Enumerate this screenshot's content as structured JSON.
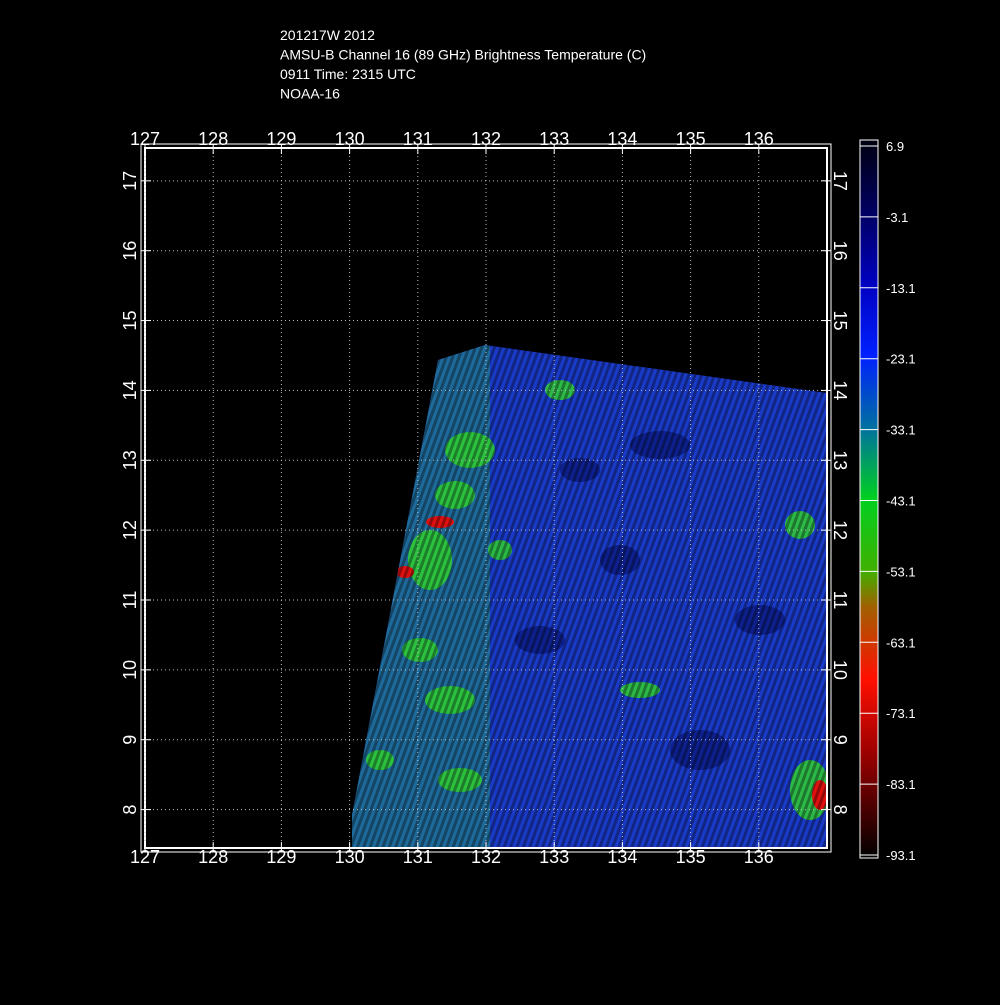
{
  "header": {
    "lines": [
      "201217W 2012",
      "AMSU-B Channel 16 (89 GHz) Brightness Temperature (C)",
      "0911 Time: 2315 UTC",
      "NOAA-16"
    ]
  },
  "map": {
    "lonlim": [
      127,
      137
    ],
    "latlim": [
      7.45,
      17.47
    ],
    "lon_ticks": [
      127,
      128,
      129,
      130,
      131,
      132,
      133,
      134,
      135,
      136
    ],
    "lat_ticks": [
      8,
      9,
      10,
      11,
      12,
      13,
      14,
      15,
      16,
      17
    ]
  },
  "colorbar": {
    "lim": [
      -93.1,
      6.9
    ],
    "ticks": [
      6.9,
      -3.1,
      -13.1,
      -23.1,
      -33.1,
      -43.1,
      -53.1,
      -63.1,
      -73.1,
      -83.1,
      -93.1
    ]
  }
}
